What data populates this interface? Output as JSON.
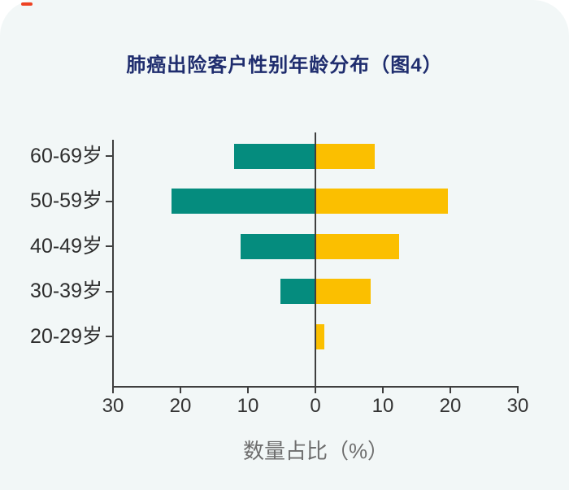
{
  "page": {
    "title": "肺癌出险客户性别年龄分布（图4）"
  },
  "colors": {
    "background": "#F2F7F7",
    "title": "#1F2D6E",
    "axis": "#3F3F3F",
    "tick_text": "#333333",
    "xlabel_text": "#6E6E6E",
    "red_marker": "#EE4223",
    "bar_left": "#058C7E",
    "bar_right": "#FBBF00"
  },
  "chart_data": {
    "type": "bar",
    "variant": "diverging-horizontal-pyramid",
    "title": "肺癌出险客户性别年龄分布（图4）",
    "categories": [
      "60-69岁",
      "50-59岁",
      "40-49岁",
      "30-39岁",
      "20-29岁"
    ],
    "series": [
      {
        "name": "left-teal",
        "side": "left",
        "color": "#058C7E",
        "values": [
          12.0,
          21.3,
          11.0,
          5.2,
          0
        ]
      },
      {
        "name": "right-yellow",
        "side": "right",
        "color": "#FBBF00",
        "values": [
          8.8,
          19.6,
          12.4,
          8.2,
          1.3
        ]
      }
    ],
    "xlabel": "数量占比（%）",
    "x_ticks": [
      "30",
      "20",
      "10",
      "0",
      "10",
      "20",
      "30"
    ],
    "xlim": [
      -30,
      30
    ],
    "grid": false,
    "legend": "none"
  }
}
